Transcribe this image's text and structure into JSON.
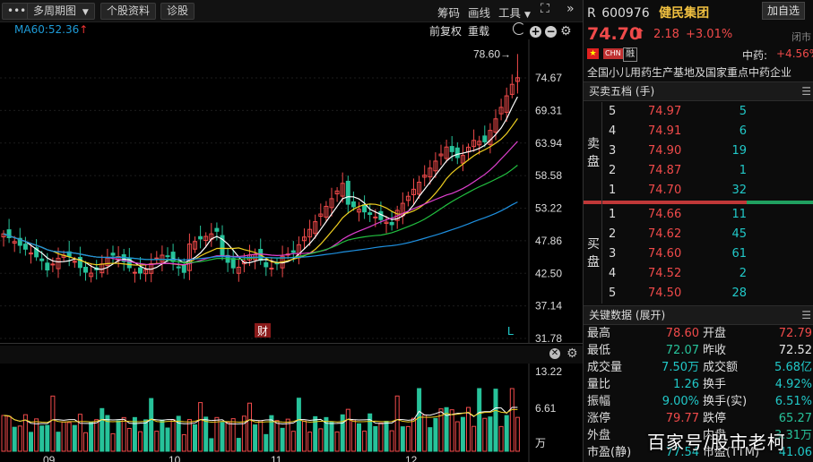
{
  "toolbar": {
    "more_label": "•••",
    "period_label": "多周期图",
    "stock_info_label": "个股资料",
    "diagnose_label": "诊股",
    "chips_label": "筹码",
    "draw_label": "画线",
    "tools_label": "工具",
    "expand_icon": "⛶",
    "collapse_icon": "»"
  },
  "ma_line": {
    "ma60_label": "MA60:52.36",
    "ma60_trend": "↑",
    "adjust_label": "前复权",
    "overlay_label": "重载"
  },
  "price_axis": [
    "74.67",
    "69.31",
    "63.94",
    "58.58",
    "53.22",
    "47.86",
    "42.50",
    "37.14",
    "31.78"
  ],
  "max_marker": "78.60→",
  "chart_markers": {
    "finance": "财",
    "l_marker": "L"
  },
  "volume_axis": [
    "13.22",
    "6.61",
    "万"
  ],
  "date_labels": [
    "09",
    "10",
    "11",
    "12"
  ],
  "colors": {
    "up": "#f04a4a",
    "down": "#27c29a",
    "ma5": "#ffffff",
    "ma10": "#f0d020",
    "ma20": "#e040d0",
    "ma30": "#22c040",
    "ma60": "#1e90e0"
  },
  "header": {
    "r_label": "R",
    "code": "600976",
    "name": "健民集团",
    "add_button": "加自选",
    "price": "74.70",
    "arrow": "⬆",
    "change": "2.18",
    "change_pct": "+3.01%",
    "status": "闭市",
    "chn_tag": "CHN",
    "rong_tag": "融",
    "sector_label": "中药:",
    "sector_pct": "+4.56%",
    "description": "全国小儿用药生产基地及国家重点中药企业"
  },
  "orderbook": {
    "title": "买卖五档 (手)",
    "sell_side_label": "卖盘",
    "buy_side_label": "买盘",
    "sell": [
      {
        "level": "5",
        "price": "74.97",
        "vol": "5"
      },
      {
        "level": "4",
        "price": "74.91",
        "vol": "6"
      },
      {
        "level": "3",
        "price": "74.90",
        "vol": "19"
      },
      {
        "level": "2",
        "price": "74.87",
        "vol": "1"
      },
      {
        "level": "1",
        "price": "74.70",
        "vol": "32"
      }
    ],
    "buy": [
      {
        "level": "1",
        "price": "74.66",
        "vol": "11"
      },
      {
        "level": "2",
        "price": "74.62",
        "vol": "45"
      },
      {
        "level": "3",
        "price": "74.60",
        "vol": "61"
      },
      {
        "level": "4",
        "price": "74.52",
        "vol": "2"
      },
      {
        "level": "5",
        "price": "74.50",
        "vol": "28"
      }
    ]
  },
  "keydata": {
    "title": "关键数据 (展开)",
    "rows": [
      {
        "l1": "最高",
        "v1": "78.60",
        "c1": "red",
        "l2": "开盘",
        "v2": "72.79",
        "c2": "red"
      },
      {
        "l1": "最低",
        "v1": "72.07",
        "c1": "green",
        "l2": "昨收",
        "v2": "72.52",
        "c2": "white"
      },
      {
        "l1": "成交量",
        "v1": "7.50万",
        "c1": "cyan",
        "l2": "成交额",
        "v2": "5.68亿",
        "c2": "cyan"
      },
      {
        "l1": "量比",
        "v1": "1.26",
        "c1": "cyan",
        "l2": "换手",
        "v2": "4.92%",
        "c2": "cyan"
      },
      {
        "l1": "振幅",
        "v1": "9.00%",
        "c1": "cyan",
        "l2": "换手(实)",
        "v2": "6.51%",
        "c2": "cyan"
      },
      {
        "l1": "涨停",
        "v1": "79.77",
        "c1": "red",
        "l2": "跌停",
        "v2": "65.27",
        "c2": "green"
      },
      {
        "l1": "外盘",
        "v1": "",
        "c1": "red",
        "l2": "内盘",
        "v2": "3.31万",
        "c2": "green"
      },
      {
        "l1": "市盈(静)",
        "v1": "77.54",
        "c1": "cyan",
        "l2": "市盈(TTM)",
        "v2": "41.06",
        "c2": "cyan"
      }
    ]
  },
  "watermark": "百家号/股市老柯"
}
